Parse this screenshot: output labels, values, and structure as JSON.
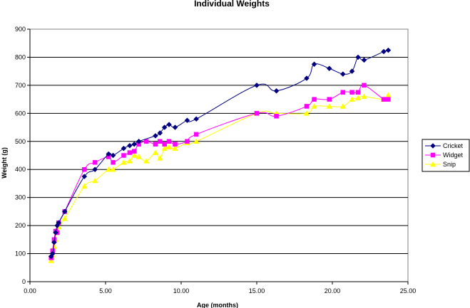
{
  "chart_data": {
    "type": "line",
    "title": "Individual Weights",
    "xlabel": "Age (months)",
    "ylabel": "Weight (g)",
    "xlim": [
      0,
      25
    ],
    "ylim": [
      0,
      900
    ],
    "xticks": [
      0,
      5,
      10,
      15,
      20,
      25
    ],
    "xtick_labels": [
      "0.00",
      "5.00",
      "10.00",
      "15.00",
      "20.00",
      "25.00"
    ],
    "yticks": [
      0,
      100,
      200,
      300,
      400,
      500,
      600,
      700,
      800,
      900
    ],
    "ytick_labels": [
      "0",
      "100",
      "200",
      "300",
      "400",
      "500",
      "600",
      "700",
      "800",
      "900"
    ],
    "grid": "horizontal",
    "legend": "right",
    "plot_area_color": "#ffffff",
    "series": [
      {
        "name": "Cricket",
        "color": "#000080",
        "marker": "diamond",
        "x": [
          1.4,
          1.5,
          1.6,
          1.7,
          1.8,
          1.9,
          2.3,
          3.6,
          4.3,
          5.2,
          5.5,
          6.2,
          6.6,
          6.9,
          7.2,
          8.3,
          8.6,
          8.9,
          9.2,
          9.6,
          10.4,
          11.0,
          15.0,
          16.3,
          18.3,
          18.8,
          19.8,
          20.7,
          21.3,
          21.7,
          22.1,
          23.4,
          23.7
        ],
        "y": [
          90,
          100,
          140,
          175,
          200,
          210,
          250,
          375,
          400,
          455,
          450,
          475,
          485,
          490,
          500,
          520,
          530,
          550,
          560,
          550,
          575,
          580,
          700,
          680,
          725,
          775,
          760,
          740,
          750,
          800,
          790,
          820,
          825
        ]
      },
      {
        "name": "Widget",
        "color": "#ff00ff",
        "marker": "square",
        "x": [
          1.4,
          1.5,
          1.6,
          1.7,
          1.8,
          1.9,
          2.3,
          3.6,
          4.3,
          5.2,
          5.5,
          6.2,
          6.6,
          6.9,
          7.2,
          7.7,
          8.3,
          8.6,
          8.9,
          9.2,
          9.6,
          10.4,
          11.0,
          15.0,
          16.3,
          18.3,
          18.8,
          19.8,
          20.7,
          21.3,
          21.7,
          22.1,
          23.4,
          23.7
        ],
        "y": [
          85,
          110,
          150,
          180,
          175,
          210,
          250,
          400,
          425,
          445,
          425,
          450,
          460,
          465,
          490,
          500,
          490,
          500,
          490,
          500,
          490,
          500,
          525,
          600,
          590,
          625,
          650,
          650,
          675,
          675,
          675,
          700,
          650,
          650
        ]
      },
      {
        "name": "Snip",
        "color": "#ffff00",
        "marker": "triangle",
        "x": [
          1.4,
          1.5,
          1.6,
          1.7,
          1.8,
          1.9,
          2.3,
          3.6,
          4.3,
          5.2,
          5.5,
          6.2,
          6.6,
          6.9,
          7.2,
          7.7,
          8.3,
          8.6,
          8.9,
          9.2,
          9.6,
          10.4,
          11.0,
          15.0,
          16.3,
          18.3,
          18.8,
          19.8,
          20.7,
          21.3,
          21.7,
          22.1,
          23.4,
          23.7
        ],
        "y": [
          75,
          95,
          125,
          150,
          175,
          195,
          225,
          340,
          360,
          400,
          400,
          425,
          430,
          450,
          445,
          430,
          460,
          440,
          475,
          480,
          475,
          495,
          500,
          600,
          600,
          600,
          625,
          625,
          625,
          650,
          655,
          660,
          650,
          665
        ]
      }
    ]
  }
}
